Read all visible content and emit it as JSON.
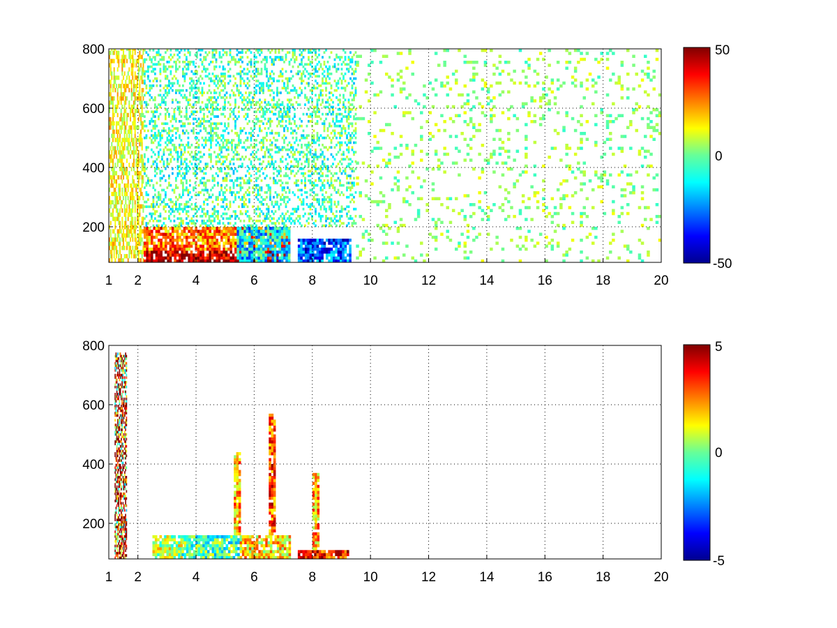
{
  "chart_data": [
    {
      "type": "heatmap",
      "title": "",
      "xlabel": "",
      "ylabel": "",
      "x_range": [
        1,
        20
      ],
      "y_range": [
        80,
        800
      ],
      "x_ticks": [
        "1",
        "2",
        "4",
        "6",
        "8",
        "10",
        "12",
        "14",
        "16",
        "18",
        "20"
      ],
      "y_ticks": [
        "200",
        "400",
        "600",
        "800"
      ],
      "grid": true,
      "colormap": "jet",
      "colorbar": {
        "range": [
          -50,
          50
        ],
        "tick_labels": [
          "50",
          "0",
          "-50"
        ],
        "placement": "right"
      },
      "regions": [
        {
          "x": [
            1.0,
            2.2
          ],
          "y": [
            80,
            800
          ],
          "value": 12,
          "density": "vertical streaks"
        },
        {
          "x": [
            2.2,
            7.2
          ],
          "y": [
            80,
            120
          ],
          "value": 45
        },
        {
          "x": [
            2.2,
            7.2
          ],
          "y": [
            120,
            200
          ],
          "value": 25
        },
        {
          "x": [
            5.4,
            7.2
          ],
          "y": [
            80,
            200
          ],
          "value": -15
        },
        {
          "x": [
            7.5,
            9.3
          ],
          "y": [
            80,
            160
          ],
          "value": -30
        },
        {
          "x": [
            2.2,
            9.5
          ],
          "y": [
            200,
            800
          ],
          "value": -5,
          "density": "sparse"
        },
        {
          "x": [
            9.5,
            20.0
          ],
          "y": [
            80,
            800
          ],
          "value": 2,
          "density": "very sparse"
        }
      ]
    },
    {
      "type": "heatmap",
      "title": "",
      "xlabel": "",
      "ylabel": "",
      "x_range": [
        1,
        20
      ],
      "y_range": [
        80,
        800
      ],
      "x_ticks": [
        "1",
        "2",
        "4",
        "6",
        "8",
        "10",
        "12",
        "14",
        "16",
        "18",
        "20"
      ],
      "y_ticks": [
        "200",
        "400",
        "600",
        "800"
      ],
      "grid": true,
      "colormap": "jet",
      "colorbar": {
        "range": [
          -5,
          5
        ],
        "tick_labels": [
          "5",
          "0",
          "-5"
        ],
        "placement": "right"
      },
      "regions": [
        {
          "x": [
            1.2,
            1.6
          ],
          "y": [
            80,
            770
          ],
          "value": 4,
          "density": "thin streaks"
        },
        {
          "x": [
            2.5,
            3.5
          ],
          "y": [
            80,
            160
          ],
          "value": 0.5
        },
        {
          "x": [
            3.5,
            5.5
          ],
          "y": [
            80,
            160
          ],
          "value": -0.5
        },
        {
          "x": [
            5.5,
            7.2
          ],
          "y": [
            80,
            160
          ],
          "value": 1.5
        },
        {
          "x": [
            7.5,
            9.2
          ],
          "y": [
            80,
            110
          ],
          "value": 3.5
        },
        {
          "x": [
            5.3,
            5.5
          ],
          "y": [
            160,
            440
          ],
          "value": 2
        },
        {
          "x": [
            6.5,
            6.7
          ],
          "y": [
            160,
            570
          ],
          "value": 3
        },
        {
          "x": [
            8.0,
            8.2
          ],
          "y": [
            110,
            370
          ],
          "value": 2
        }
      ]
    }
  ]
}
